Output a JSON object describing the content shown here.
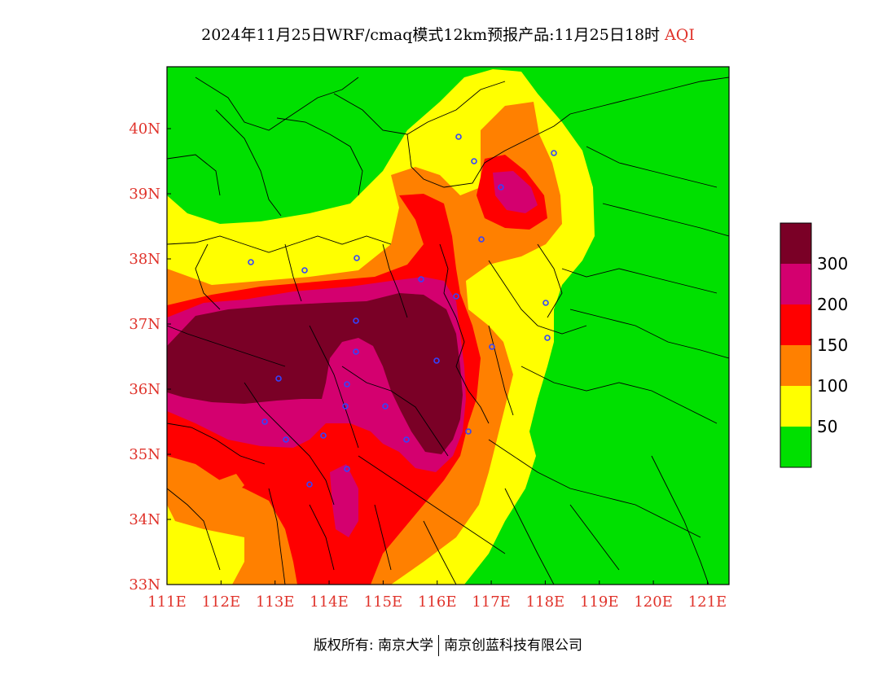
{
  "title": {
    "text": "2024年11月25日WRF/cmaq模式12km预报产品:11月25日18时",
    "variable": "AQI"
  },
  "map": {
    "lon_range": [
      111,
      121.4
    ],
    "lat_range": [
      33,
      40.95
    ],
    "x_ticks": [
      "111E",
      "112E",
      "113E",
      "114E",
      "115E",
      "116E",
      "117E",
      "118E",
      "119E",
      "120E",
      "121E"
    ],
    "y_ticks": [
      "33N",
      "34N",
      "35N",
      "36N",
      "37N",
      "38N",
      "39N",
      "40N"
    ],
    "tick_label_color": "#e0332b"
  },
  "legend": {
    "labels": [
      "300",
      "200",
      "150",
      "100",
      "50"
    ],
    "colors": [
      "#7a0026",
      "#d4006f",
      "#ff0000",
      "#ff8000",
      "#ffff00",
      "#00e000"
    ]
  },
  "footer": {
    "left": "版权所有: 南京大学",
    "right": "南京创蓝科技有限公司"
  }
}
